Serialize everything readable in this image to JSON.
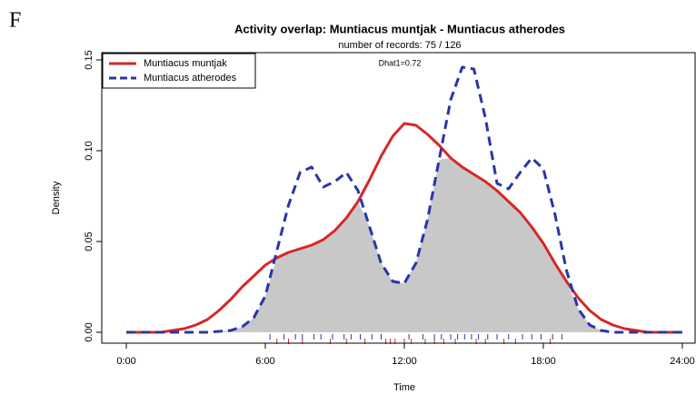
{
  "chart_data": {
    "type": "line",
    "panel_label": "F",
    "title": "Activity overlap:  Muntiacus muntjak - Muntiacus atherodes",
    "subtitle": "number of records: 75 / 126",
    "annotation": "Dhat1=0.72",
    "xlabel": "Time",
    "ylabel": "Density",
    "x": [
      0,
      0.5,
      1,
      1.5,
      2,
      2.5,
      3,
      3.5,
      4,
      4.5,
      5,
      5.5,
      6,
      6.5,
      7,
      7.5,
      8,
      8.5,
      9,
      9.5,
      10,
      10.5,
      11,
      11.5,
      12,
      12.5,
      13,
      13.5,
      14,
      14.5,
      15,
      15.5,
      16,
      16.5,
      17,
      17.5,
      18,
      18.5,
      19,
      19.5,
      20,
      20.5,
      21,
      21.5,
      22,
      22.5,
      23,
      23.5,
      24
    ],
    "series": [
      {
        "name": "Muntiacus muntjak",
        "color": "#d62728",
        "dash": false,
        "values": [
          0,
          0,
          0,
          0,
          0.001,
          0.002,
          0.004,
          0.007,
          0.012,
          0.018,
          0.025,
          0.031,
          0.037,
          0.041,
          0.044,
          0.046,
          0.048,
          0.051,
          0.056,
          0.063,
          0.072,
          0.084,
          0.097,
          0.108,
          0.115,
          0.114,
          0.109,
          0.103,
          0.096,
          0.091,
          0.087,
          0.083,
          0.078,
          0.072,
          0.066,
          0.058,
          0.049,
          0.038,
          0.028,
          0.019,
          0.012,
          0.007,
          0.004,
          0.002,
          0.001,
          0,
          0,
          0,
          0
        ],
        "rug": [
          6.5,
          7.0,
          7.6,
          8.8,
          9.5,
          10.3,
          11.2,
          11.4,
          11.6,
          12.0,
          12.3,
          12.9,
          13.3,
          13.7,
          14.2,
          15.1,
          15.5,
          16.3,
          16.8,
          18.3
        ]
      },
      {
        "name": "Muntiacus atherodes",
        "color": "#2b35a8",
        "dash": true,
        "values": [
          0,
          0,
          0,
          0,
          0,
          0,
          0,
          0,
          0.0005,
          0.001,
          0.003,
          0.008,
          0.02,
          0.045,
          0.07,
          0.088,
          0.091,
          0.08,
          0.083,
          0.088,
          0.078,
          0.058,
          0.038,
          0.028,
          0.027,
          0.038,
          0.062,
          0.095,
          0.128,
          0.146,
          0.145,
          0.118,
          0.082,
          0.079,
          0.088,
          0.096,
          0.09,
          0.065,
          0.034,
          0.013,
          0.004,
          0.001,
          0,
          0,
          0,
          0,
          0,
          0,
          0
        ],
        "rug": [
          6.2,
          6.8,
          7.3,
          7.6,
          8.1,
          8.4,
          8.9,
          9.4,
          9.7,
          10.1,
          10.6,
          11.0,
          12.2,
          12.8,
          13.3,
          13.6,
          14.0,
          14.3,
          14.6,
          14.9,
          15.2,
          15.6,
          16.0,
          16.5,
          17.1,
          17.5,
          17.9,
          18.4,
          18.8
        ]
      }
    ],
    "overlap_color": "#c8c8c8",
    "xlim": [
      -1.06,
      24.55
    ],
    "ylim": [
      -0.006,
      0.154
    ],
    "xticks": [
      {
        "value": 0,
        "label": "0:00"
      },
      {
        "value": 6,
        "label": "6:00"
      },
      {
        "value": 12,
        "label": "12:00"
      },
      {
        "value": 18,
        "label": "18:00"
      },
      {
        "value": 24,
        "label": "24:00"
      }
    ],
    "yticks": [
      {
        "value": 0,
        "label": "0.00"
      },
      0.05,
      {
        "value": 0.1,
        "label": "0.10"
      },
      0.15
    ],
    "legend": "top-left"
  }
}
